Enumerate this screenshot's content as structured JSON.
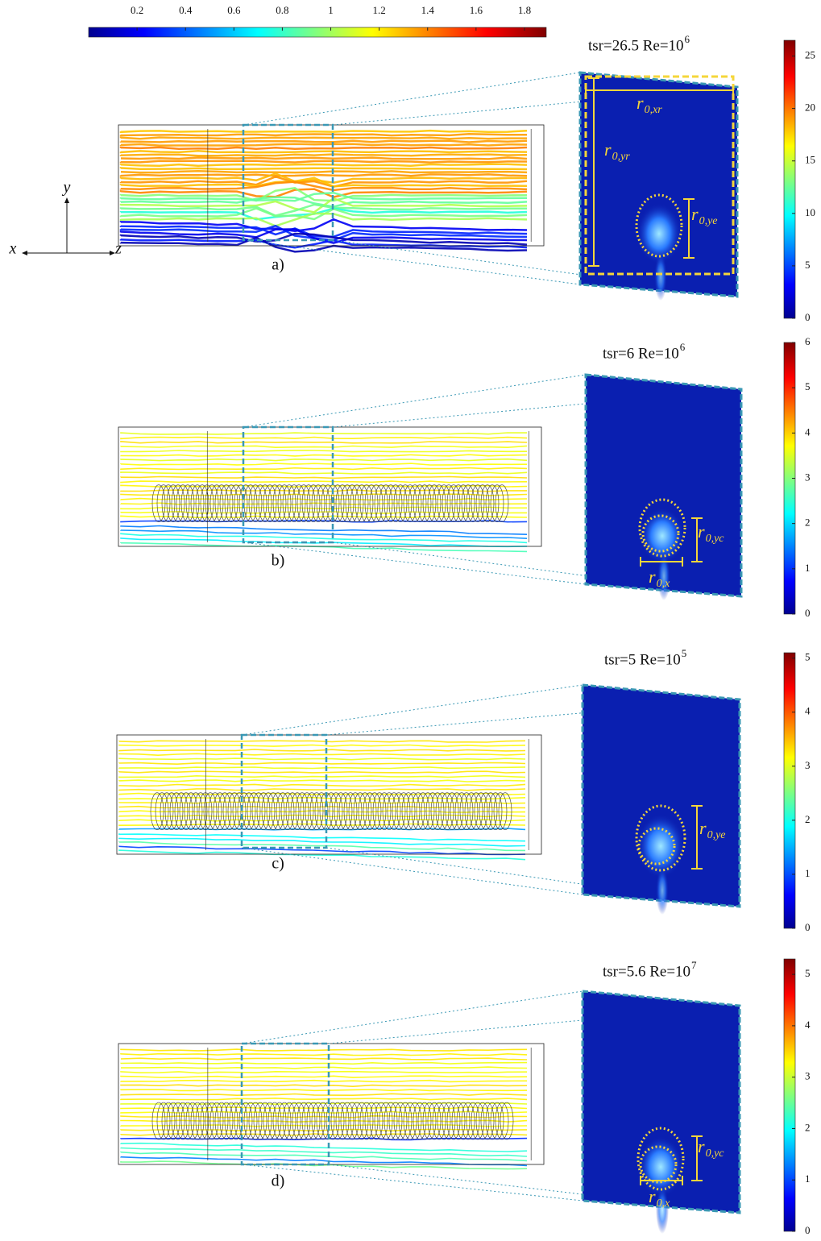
{
  "top_colorbar": {
    "xlim": [
      0,
      1.89
    ],
    "xticks": [
      0.2,
      0.4,
      0.6,
      0.8,
      1,
      1.2,
      1.4,
      1.6,
      1.8
    ]
  },
  "axes_labels": {
    "x": "x",
    "y": "y",
    "z": "z"
  },
  "panels": [
    {
      "label": "a)",
      "title": "tsr=26.5 Re=10",
      "title_exponent": "6",
      "colorbar": {
        "ylim": [
          0,
          26.5
        ],
        "yticks": [
          0,
          5,
          10,
          15,
          20,
          25
        ]
      },
      "annotations": [
        {
          "main": "r",
          "sub": "0,xr"
        },
        {
          "main": "r",
          "sub": "0,yr"
        },
        {
          "main": "r",
          "sub": "0,ye"
        }
      ]
    },
    {
      "label": "b)",
      "title": "tsr=6 Re=10",
      "title_exponent": "6",
      "colorbar": {
        "ylim": [
          0,
          6
        ],
        "yticks": [
          0,
          1,
          2,
          3,
          4,
          5,
          6
        ]
      },
      "annotations": [
        {
          "main": "r",
          "sub": "0,yc"
        },
        {
          "main": "r",
          "sub": "0,x"
        }
      ]
    },
    {
      "label": "c)",
      "title": "tsr=5 Re=10",
      "title_exponent": "5",
      "colorbar": {
        "ylim": [
          0,
          5.1
        ],
        "yticks": [
          0,
          1,
          2,
          3,
          4,
          5
        ]
      },
      "annotations": [
        {
          "main": "r",
          "sub": "0,ye"
        }
      ]
    },
    {
      "label": "d)",
      "title": "tsr=5.6 Re=10",
      "title_exponent": "7",
      "colorbar": {
        "ylim": [
          0,
          5.3
        ],
        "yticks": [
          0,
          1,
          2,
          3,
          4,
          5
        ]
      },
      "annotations": [
        {
          "main": "r",
          "sub": "0,yc"
        },
        {
          "main": "r",
          "sub": "0,x"
        }
      ]
    }
  ]
}
